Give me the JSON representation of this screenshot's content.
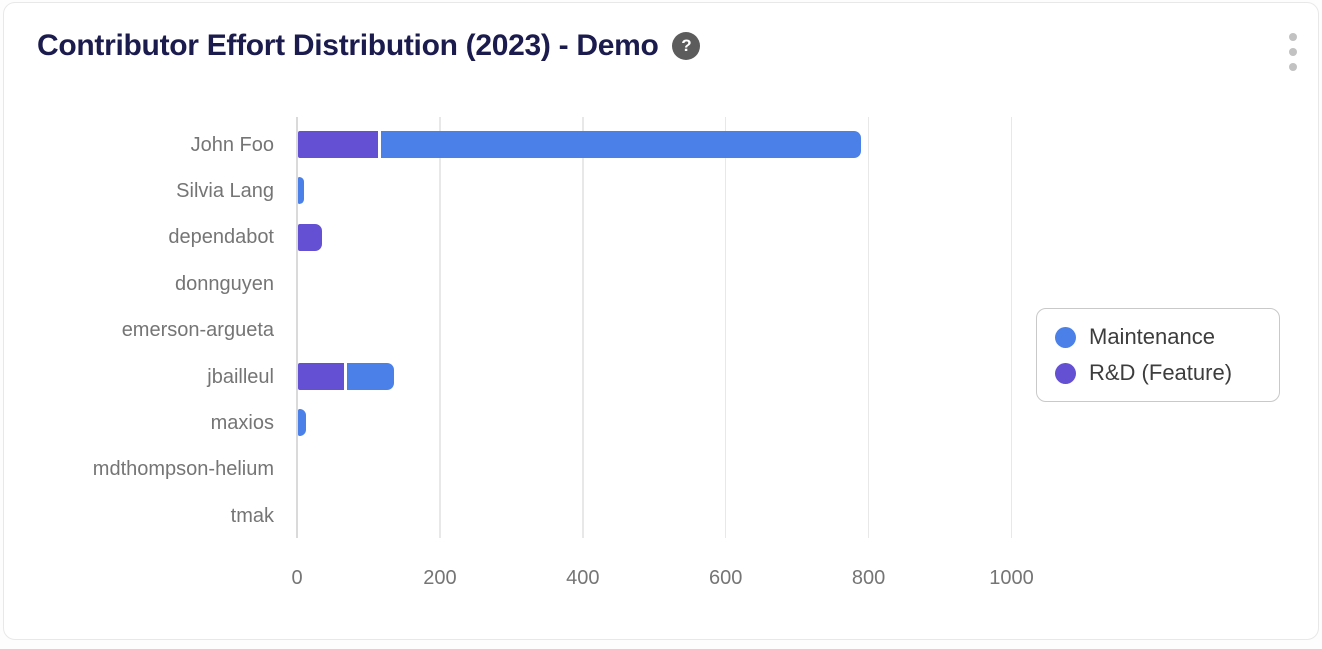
{
  "header": {
    "title": "Contributor Effort Distribution (2023) - Demo",
    "help_glyph": "?",
    "menu_icon": "kebab-vertical"
  },
  "colors": {
    "title_text": "#1b1b4e",
    "axis_text": "#757575",
    "grid": "#e8e8e8",
    "maintenance": "#4b80e8",
    "rnd_feature": "#6450d2",
    "help_icon_bg": "#5c5c5c",
    "legend_border": "#c9c9c9"
  },
  "chart_data": {
    "type": "bar",
    "variant": "horizontal_stacked",
    "title": "Contributor Effort Distribution (2023) - Demo",
    "categories": [
      "John Foo",
      "Silvia Lang",
      "dependabot",
      "donnguyen",
      "emerson-argueta",
      "jbailleul",
      "maxios",
      "mdthompson-helium",
      "tmak"
    ],
    "series": [
      {
        "name": "Maintenance",
        "color": "#4b80e8",
        "values": [
          672,
          8,
          0,
          0,
          0,
          66,
          11,
          0,
          0
        ]
      },
      {
        "name": "R&D (Feature)",
        "color": "#6450d2",
        "values": [
          112,
          0,
          34,
          0,
          0,
          64,
          0,
          0,
          0
        ]
      }
    ],
    "stack_order": [
      "R&D (Feature)",
      "Maintenance"
    ],
    "xlabel": "",
    "ylabel": "",
    "xlim": [
      0,
      1000
    ],
    "xticks": [
      0,
      200,
      400,
      600,
      800,
      1000
    ],
    "grid": "vertical",
    "legend_position": "right"
  }
}
